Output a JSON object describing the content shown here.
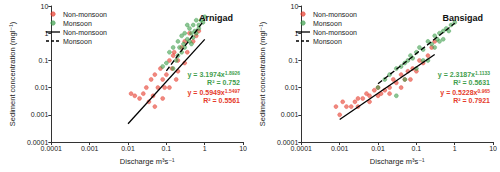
{
  "chart_data": [
    {
      "type": "scatter",
      "title": "Arnigad",
      "x_label": "Discharge m³s⁻¹",
      "y_label": "Sediment concentration (mgl⁻¹)",
      "log": true,
      "grid": false,
      "legend": "top-left",
      "xlim": [
        0.0001,
        10
      ],
      "ylim": [
        0.0001,
        10
      ],
      "xticks": [
        0.0001,
        0.001,
        0.01,
        0.1,
        1,
        10
      ],
      "yticks": [
        0.0001,
        0.001,
        0.01,
        0.1,
        1,
        10
      ],
      "series": [
        {
          "name": "Non-monsoon",
          "type": "scatter",
          "marker": "circle",
          "color": "#e53b2c",
          "x": [
            0.012,
            0.015,
            0.02,
            0.025,
            0.03,
            0.035,
            0.04,
            0.045,
            0.05,
            0.06,
            0.07,
            0.08,
            0.09,
            0.1,
            0.12,
            0.14,
            0.16,
            0.18,
            0.2,
            0.25,
            0.3,
            0.35,
            0.4,
            0.5,
            0.6,
            0.7,
            0.05,
            0.08,
            0.12,
            0.2,
            0.3,
            0.15
          ],
          "values": [
            0.006,
            0.005,
            0.004,
            0.006,
            0.01,
            0.003,
            0.02,
            0.005,
            0.03,
            0.01,
            0.05,
            0.02,
            0.01,
            0.03,
            0.1,
            0.05,
            0.2,
            0.02,
            0.1,
            0.3,
            0.5,
            0.2,
            1,
            0.5,
            0.8,
            1.2,
            0.002,
            0.004,
            0.01,
            0.04,
            0.08,
            0.15
          ]
        },
        {
          "name": "Monsoon",
          "type": "scatter",
          "marker": "circle",
          "color": "#3f9e4d",
          "x": [
            0.1,
            0.12,
            0.15,
            0.18,
            0.2,
            0.22,
            0.25,
            0.28,
            0.3,
            0.35,
            0.4,
            0.45,
            0.5,
            0.55,
            0.6,
            0.7,
            0.8,
            0.9,
            1,
            0.15,
            0.2,
            0.3,
            0.4,
            0.5,
            0.6,
            0.25,
            0.35,
            0.7,
            0.45,
            0.08
          ],
          "values": [
            0.08,
            0.2,
            0.3,
            0.1,
            0.5,
            0.3,
            0.8,
            0.4,
            1,
            0.6,
            1.5,
            1,
            2,
            1.2,
            3,
            2,
            3,
            2.5,
            4,
            0.05,
            0.15,
            0.3,
            0.5,
            0.7,
            1,
            0.2,
            2,
            1.5,
            0.4,
            0.06
          ]
        },
        {
          "name": "Non-monsoon",
          "type": "line",
          "line_style": "solid",
          "color": "#000000",
          "x": [
            0.01,
            1
          ],
          "values": [
            0.00047,
            0.595
          ]
        },
        {
          "name": "Monsoon",
          "type": "line",
          "line_style": "dashed",
          "color": "#000000",
          "x": [
            0.1,
            1
          ],
          "values": [
            0.041,
            3.2
          ]
        }
      ],
      "annotations": [
        {
          "text": "y = 3.1974x",
          "superscript": "1.8926",
          "color": "#3f9e4d"
        },
        {
          "text": "R² = 0.752",
          "color": "#3f9e4d"
        },
        {
          "text": "y = 0.5949x",
          "superscript": "1.5497",
          "color": "#e53b2c"
        },
        {
          "text": "R² = 0.5561",
          "color": "#e53b2c"
        }
      ]
    },
    {
      "type": "scatter",
      "title": "Bansigad",
      "x_label": "Discharge m³s⁻¹",
      "y_label": "Sediment concentration (mgl⁻¹)",
      "log": true,
      "grid": false,
      "legend": "top-left",
      "xlim": [
        0.0001,
        10
      ],
      "ylim": [
        0.0001,
        10
      ],
      "xticks": [
        0.0001,
        0.001,
        0.01,
        0.1,
        1,
        10
      ],
      "yticks": [
        0.0001,
        0.001,
        0.01,
        0.1,
        1,
        10
      ],
      "series": [
        {
          "name": "Non-monsoon",
          "type": "scatter",
          "marker": "circle",
          "color": "#e53b2c",
          "x": [
            0.0008,
            0.001,
            0.0012,
            0.0015,
            0.002,
            0.0025,
            0.003,
            0.004,
            0.005,
            0.006,
            0.008,
            0.01,
            0.012,
            0.015,
            0.02,
            0.025,
            0.03,
            0.04,
            0.05,
            0.06,
            0.08,
            0.1,
            0.12,
            0.15,
            0.2,
            0.25,
            0.3,
            0.003,
            0.006,
            0.01,
            0.02,
            0.04,
            0.07
          ],
          "values": [
            0.002,
            0.001,
            0.003,
            0.002,
            0.002,
            0.003,
            0.004,
            0.004,
            0.006,
            0.005,
            0.008,
            0.01,
            0.006,
            0.008,
            0.01,
            0.02,
            0.015,
            0.03,
            0.02,
            0.04,
            0.05,
            0.04,
            0.1,
            0.08,
            0.15,
            0.3,
            0.5,
            0.002,
            0.003,
            0.005,
            0.006,
            0.01,
            0.02
          ]
        },
        {
          "name": "Monsoon",
          "type": "scatter",
          "marker": "circle",
          "color": "#3f9e4d",
          "x": [
            0.01,
            0.015,
            0.02,
            0.03,
            0.04,
            0.05,
            0.06,
            0.07,
            0.08,
            0.1,
            0.12,
            0.15,
            0.2,
            0.25,
            0.3,
            0.35,
            0.4,
            0.5,
            0.6,
            0.7,
            0.8,
            1,
            0.05,
            0.1,
            0.2,
            0.3,
            0.5,
            0.03,
            0.15,
            0.4
          ],
          "values": [
            0.01,
            0.02,
            0.03,
            0.05,
            0.06,
            0.08,
            0.1,
            0.15,
            0.12,
            0.2,
            0.3,
            0.25,
            0.5,
            0.4,
            0.8,
            0.6,
            1,
            1.2,
            1.5,
            1.2,
            2,
            2.5,
            0.02,
            0.05,
            0.1,
            0.3,
            0.6,
            0.005,
            0.1,
            0.5
          ]
        },
        {
          "name": "Non-monsoon",
          "type": "line",
          "line_style": "solid",
          "color": "#000000",
          "x": [
            0.001,
            0.3
          ],
          "values": [
            0.00067,
            0.164
          ]
        },
        {
          "name": "Monsoon",
          "type": "line",
          "line_style": "dashed",
          "color": "#000000",
          "x": [
            0.01,
            1
          ],
          "values": [
            0.0138,
            2.32
          ]
        }
      ],
      "annotations": [
        {
          "text": "y = 2.3187x",
          "superscript": "1.1133",
          "color": "#3f9e4d"
        },
        {
          "text": "R² = 0.5631",
          "color": "#3f9e4d"
        },
        {
          "text": "y = 0.5228x",
          "superscript": "0.965",
          "color": "#e53b2c"
        },
        {
          "text": "R² = 0.7921",
          "color": "#e53b2c"
        }
      ]
    }
  ]
}
